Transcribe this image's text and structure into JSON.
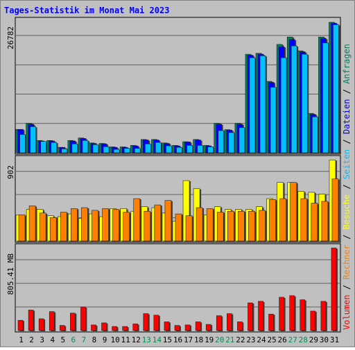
{
  "chart_data": {
    "type": "bar",
    "title": "Tages-Statistik im Monat Mai 2023",
    "categories": [
      "1",
      "2",
      "3",
      "4",
      "5",
      "6",
      "7",
      "8",
      "9",
      "10",
      "11",
      "12",
      "13",
      "14",
      "15",
      "16",
      "17",
      "18",
      "19",
      "20",
      "21",
      "22",
      "23",
      "24",
      "25",
      "26",
      "27",
      "28",
      "29",
      "30",
      "31"
    ],
    "weekend_days": [
      6,
      7,
      13,
      14,
      20,
      21,
      27,
      28
    ],
    "colors": {
      "background": "#c0c0c0",
      "border": "#606060",
      "title": "#0000ff",
      "weekend_label": "#009050",
      "anfragen": "#008060",
      "dateien": "#0000ff",
      "seiten": "#00c0ff",
      "besuche": "#ffff00",
      "rechner": "#ff8000",
      "volumen": "#ff0000",
      "separator": "#000000"
    },
    "panels": [
      {
        "id": "top",
        "max_label": "26782",
        "ymax": 26782,
        "legend": [
          "Anfragen",
          "Dateien",
          "Seiten"
        ],
        "series": [
          {
            "name": "Anfragen",
            "values": [
              4750,
              6000,
              2500,
              2500,
              1100,
              2500,
              3000,
              2000,
              1900,
              1200,
              1200,
              1500,
              2700,
              2700,
              2000,
              1500,
              2250,
              2700,
              1500,
              6000,
              4700,
              6000,
              20000,
              20200,
              14500,
              22000,
              23500,
              20700,
              8000,
              23500,
              26500
            ]
          },
          {
            "name": "Dateien",
            "values": [
              4750,
              5800,
              2400,
              2400,
              1100,
              2400,
              2900,
              1900,
              1800,
              1100,
              1100,
              1400,
              2600,
              2600,
              1900,
              1400,
              2200,
              2600,
              1400,
              5800,
              4600,
              5800,
              19800,
              20000,
              14300,
              21500,
              23000,
              20500,
              7800,
              23200,
              26300
            ]
          },
          {
            "name": "Seiten",
            "values": [
              3700,
              5300,
              2300,
              2100,
              800,
              1800,
              2500,
              1650,
              1250,
              700,
              900,
              900,
              1800,
              2100,
              1400,
              1100,
              1500,
              1500,
              1200,
              4500,
              4100,
              5100,
              19300,
              19700,
              13300,
              19300,
              21700,
              20000,
              7300,
              22300,
              26000
            ]
          }
        ]
      },
      {
        "id": "mid",
        "max_label": "902",
        "ymax": 902,
        "legend": [
          "Besuche",
          "Rechner"
        ],
        "series": [
          {
            "name": "Besuche",
            "values": [
              290,
              350,
              350,
              280,
              270,
              300,
              250,
              300,
              270,
              360,
              360,
              330,
              380,
              370,
              310,
              220,
              670,
              580,
              290,
              380,
              350,
              350,
              350,
              380,
              470,
              650,
              650,
              550,
              540,
              520,
              900
            ]
          },
          {
            "name": "Rechner",
            "values": [
              290,
              390,
              310,
              260,
              320,
              360,
              370,
              340,
              360,
              350,
              320,
              470,
              330,
              400,
              450,
              300,
              280,
              370,
              360,
              320,
              330,
              330,
              330,
              340,
              460,
              470,
              650,
              470,
              420,
              440,
              690
            ]
          }
        ]
      },
      {
        "id": "bot",
        "max_label": "805.41 MB",
        "ymax": 805.41,
        "legend": [
          "Volumen"
        ],
        "series": [
          {
            "name": "Volumen",
            "values": [
              100,
              200,
              115,
              185,
              50,
              170,
              230,
              55,
              75,
              40,
              40,
              65,
              165,
              150,
              85,
              50,
              55,
              85,
              60,
              145,
              165,
              85,
              270,
              285,
              160,
              325,
              340,
              300,
              190,
              285,
              805
            ]
          }
        ]
      }
    ]
  }
}
